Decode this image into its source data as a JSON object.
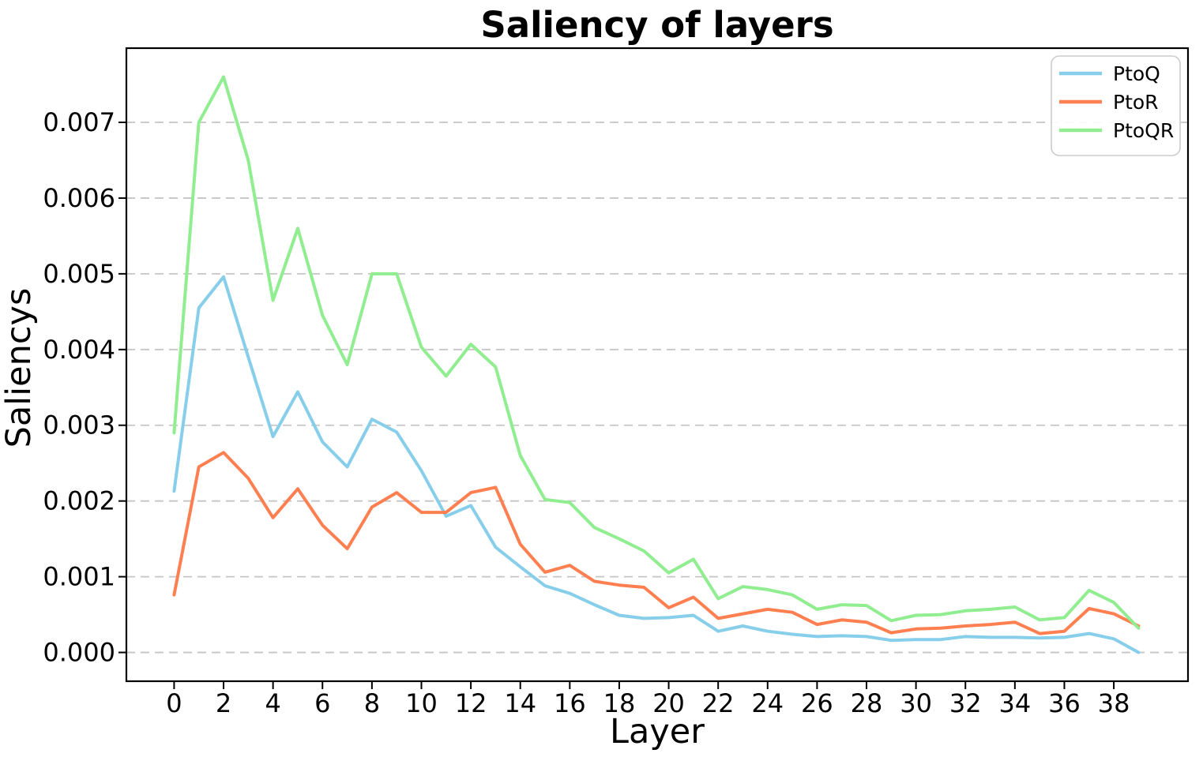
{
  "chart_data": {
    "type": "line",
    "title": "Saliency of layers",
    "xlabel": "Layer",
    "ylabel": "Saliencys",
    "x": [
      0,
      1,
      2,
      3,
      4,
      5,
      6,
      7,
      8,
      9,
      10,
      11,
      12,
      13,
      14,
      15,
      16,
      17,
      18,
      19,
      20,
      21,
      22,
      23,
      24,
      25,
      26,
      27,
      28,
      29,
      30,
      31,
      32,
      33,
      34,
      35,
      36,
      37,
      38,
      39
    ],
    "series": [
      {
        "name": "PtoQ",
        "color": "#87CEEB",
        "values": [
          0.00213,
          0.00455,
          0.00496,
          0.0039,
          0.00285,
          0.00344,
          0.00278,
          0.00245,
          0.00308,
          0.00291,
          0.0024,
          0.0018,
          0.00194,
          0.00139,
          0.00113,
          0.00088,
          0.00078,
          0.00063,
          0.00049,
          0.00045,
          0.00046,
          0.00049,
          0.00028,
          0.00035,
          0.00028,
          0.00024,
          0.00021,
          0.00022,
          0.00021,
          0.00016,
          0.00017,
          0.00017,
          0.00021,
          0.0002,
          0.0002,
          0.00019,
          0.0002,
          0.00025,
          0.00018,
          0.0
        ]
      },
      {
        "name": "PtoR",
        "color": "#FF7F50",
        "values": [
          0.00076,
          0.00245,
          0.00264,
          0.0023,
          0.00178,
          0.00216,
          0.00168,
          0.00137,
          0.00192,
          0.00211,
          0.00185,
          0.00185,
          0.00211,
          0.00218,
          0.00143,
          0.00106,
          0.00115,
          0.00094,
          0.00089,
          0.00086,
          0.00059,
          0.00073,
          0.00045,
          0.00051,
          0.00057,
          0.00053,
          0.00037,
          0.00043,
          0.0004,
          0.00026,
          0.00031,
          0.00032,
          0.00035,
          0.00037,
          0.0004,
          0.00025,
          0.00028,
          0.00058,
          0.00051,
          0.00035
        ]
      },
      {
        "name": "PtoQR",
        "color": "#90EE90",
        "values": [
          0.0029,
          0.007,
          0.0076,
          0.0065,
          0.00465,
          0.0056,
          0.00445,
          0.0038,
          0.005,
          0.005,
          0.00403,
          0.00365,
          0.00407,
          0.00377,
          0.0026,
          0.00202,
          0.00198,
          0.00165,
          0.0015,
          0.00134,
          0.00105,
          0.00123,
          0.00071,
          0.00087,
          0.00083,
          0.00076,
          0.00057,
          0.00063,
          0.00062,
          0.00042,
          0.00049,
          0.0005,
          0.00055,
          0.00057,
          0.0006,
          0.00043,
          0.00046,
          0.00082,
          0.00066,
          0.00032
        ]
      }
    ],
    "xlim": [
      -1.93,
      41.0
    ],
    "ylim": [
      -0.00038,
      0.00798
    ],
    "xtick_labels": [
      "0",
      "2",
      "4",
      "6",
      "8",
      "10",
      "12",
      "14",
      "16",
      "18",
      "20",
      "22",
      "24",
      "26",
      "28",
      "30",
      "32",
      "34",
      "36",
      "38"
    ],
    "ytick_labels": [
      "0.000",
      "0.001",
      "0.002",
      "0.003",
      "0.004",
      "0.005",
      "0.006",
      "0.007"
    ],
    "grid": "horizontal-dashed",
    "grid_color": "#c5c5c5",
    "legend_position": "upper right",
    "spine_color": "#000000"
  }
}
